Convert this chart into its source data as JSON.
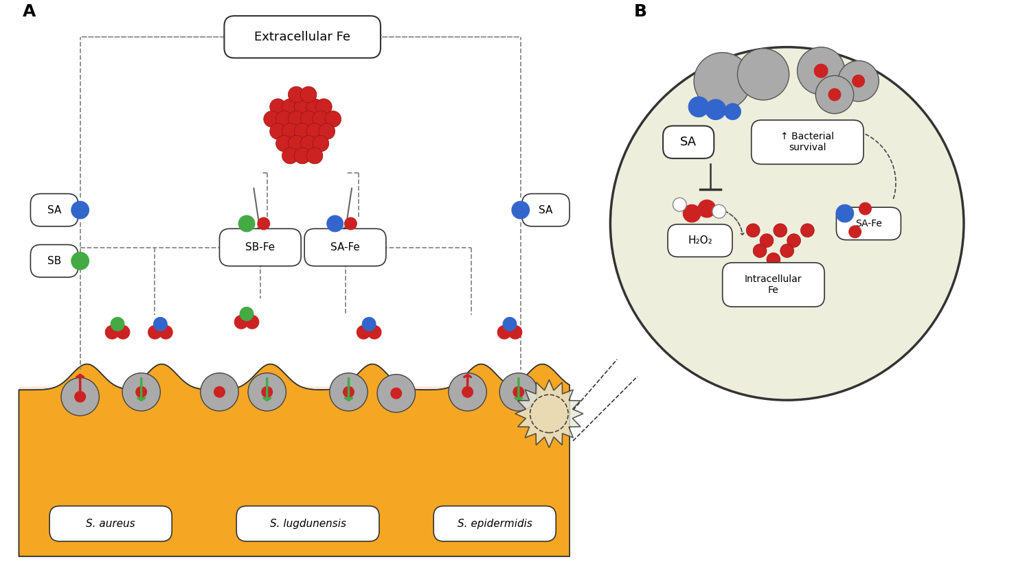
{
  "fig_width": 14.76,
  "fig_height": 8.22,
  "bg_color": "#ffffff",
  "red": "#cc2222",
  "green": "#44aa44",
  "blue": "#3366cc",
  "gray": "#888888",
  "dark_gray": "#555555",
  "gold": "#e8a020",
  "gold_dark": "#c88010",
  "skin_top": "#fde8d8",
  "skin_bottom": "#fdf0e8",
  "circle_bg": "#e8eedd",
  "box_color": "#ffffff",
  "label_A": "A",
  "label_B": "B",
  "extracellular_fe": "Extracellular Fe",
  "sa_aureus": "S. aureus",
  "s_lugdunensis": "S. lugdunensis",
  "s_epidermidis": "S. epidermidis",
  "sbfe": "SB-Fe",
  "safe": "SA-Fe",
  "sa_label": "SA",
  "sb_label": "SB",
  "bacterial_survival": "↑ Bacterial\nsurvival",
  "h2o2": "H₂O₂",
  "intracellular_fe": "Intracellular\nFe",
  "safe_label": "SA-Fe"
}
